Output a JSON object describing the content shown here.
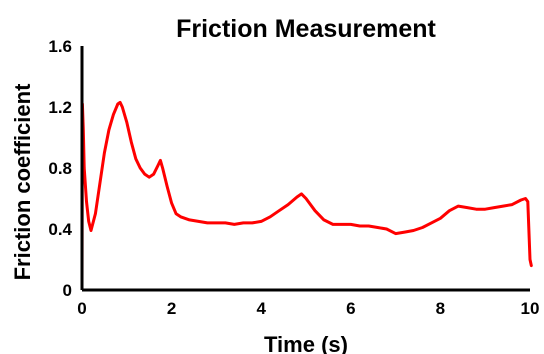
{
  "chart_data": {
    "type": "line",
    "title": "Friction Measurement",
    "xlabel": "Time (s)",
    "ylabel": "Friction coefficient",
    "xlim": [
      0,
      10
    ],
    "ylim": [
      0,
      1.6
    ],
    "xticks": [
      0,
      2,
      4,
      6,
      8,
      10
    ],
    "yticks": [
      0,
      0.4,
      0.8,
      1.2,
      1.6
    ],
    "ytick_labels": [
      "0",
      "0.4",
      "0.8",
      "1.2",
      "1.6"
    ],
    "grid": false,
    "line_color": "#ff0000",
    "series": [
      {
        "name": "",
        "x": [
          0,
          0.01,
          0.03,
          0.05,
          0.1,
          0.15,
          0.2,
          0.3,
          0.4,
          0.5,
          0.6,
          0.7,
          0.8,
          0.85,
          0.9,
          1.0,
          1.1,
          1.2,
          1.3,
          1.4,
          1.5,
          1.6,
          1.7,
          1.75,
          1.8,
          1.9,
          2.0,
          2.1,
          2.2,
          2.4,
          2.6,
          2.8,
          3.0,
          3.2,
          3.4,
          3.6,
          3.8,
          4.0,
          4.2,
          4.4,
          4.6,
          4.8,
          4.9,
          5.0,
          5.2,
          5.4,
          5.6,
          5.8,
          6.0,
          6.2,
          6.4,
          6.6,
          6.8,
          7.0,
          7.2,
          7.4,
          7.6,
          7.8,
          8.0,
          8.2,
          8.4,
          8.6,
          8.8,
          9.0,
          9.2,
          9.4,
          9.6,
          9.8,
          9.9,
          9.95,
          10.0,
          10.03
        ],
        "y": [
          0.02,
          1.22,
          1.05,
          0.8,
          0.58,
          0.45,
          0.39,
          0.5,
          0.7,
          0.9,
          1.05,
          1.15,
          1.22,
          1.23,
          1.2,
          1.1,
          0.97,
          0.86,
          0.8,
          0.76,
          0.74,
          0.76,
          0.82,
          0.85,
          0.8,
          0.68,
          0.57,
          0.5,
          0.48,
          0.46,
          0.45,
          0.44,
          0.44,
          0.44,
          0.43,
          0.44,
          0.44,
          0.45,
          0.48,
          0.52,
          0.56,
          0.61,
          0.63,
          0.6,
          0.52,
          0.46,
          0.43,
          0.43,
          0.43,
          0.42,
          0.42,
          0.41,
          0.4,
          0.37,
          0.38,
          0.39,
          0.41,
          0.44,
          0.47,
          0.52,
          0.55,
          0.54,
          0.53,
          0.53,
          0.54,
          0.55,
          0.56,
          0.59,
          0.6,
          0.58,
          0.2,
          0.16
        ]
      }
    ]
  }
}
